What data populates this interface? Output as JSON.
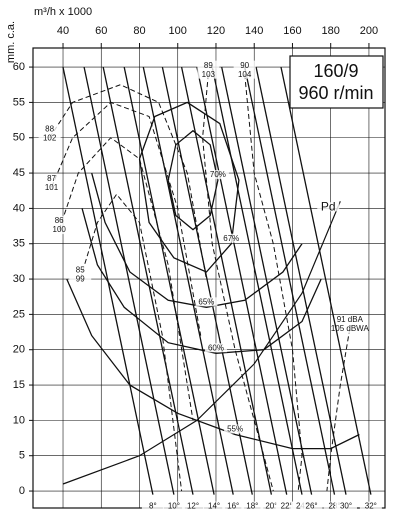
{
  "chart_data": {
    "type": "line",
    "title": [
      "160/9",
      "960 r/min"
    ],
    "x_label": "m³/h x 1000",
    "y_label": "mm. c.a.",
    "xlim": [
      24.3,
      208.4
    ],
    "ylim": [
      -2.4,
      62.7
    ],
    "xticks": [
      40,
      60,
      80,
      100,
      120,
      140,
      160,
      180,
      200
    ],
    "yticks": [
      0,
      5,
      10,
      15,
      20,
      25,
      30,
      35,
      40,
      45,
      50,
      55,
      60
    ],
    "grid": true,
    "color": "#111111",
    "series": [
      {
        "label": [
          "8°"
        ],
        "kind": "blade",
        "x": [
          40,
          87
        ],
        "values": [
          60,
          -0.5
        ]
      },
      {
        "label": [
          "10°"
        ],
        "kind": "blade",
        "x": [
          51,
          98
        ],
        "values": [
          60,
          -0.5
        ]
      },
      {
        "label": [
          "12°"
        ],
        "kind": "blade",
        "x": [
          61,
          108
        ],
        "values": [
          60,
          -0.5
        ]
      },
      {
        "label": [
          "14°"
        ],
        "kind": "blade",
        "x": [
          72,
          119
        ],
        "values": [
          60,
          -0.5
        ]
      },
      {
        "label": [
          "16°"
        ],
        "kind": "blade",
        "x": [
          82,
          129
        ],
        "values": [
          60,
          -0.5
        ]
      },
      {
        "label": [
          "18°"
        ],
        "kind": "blade",
        "x": [
          92,
          139
        ],
        "values": [
          60,
          -0.5
        ]
      },
      {
        "label": [
          "20°"
        ],
        "kind": "blade",
        "x": [
          102,
          149
        ],
        "values": [
          60,
          -0.5
        ]
      },
      {
        "label": [
          "22°"
        ],
        "kind": "blade",
        "x": [
          110,
          157
        ],
        "values": [
          60,
          -0.5
        ]
      },
      {
        "label": [
          "24°"
        ],
        "kind": "blade",
        "x": [
          118,
          165
        ],
        "values": [
          60,
          -0.5
        ]
      },
      {
        "label": [
          "26°"
        ],
        "kind": "blade",
        "x": [
          123,
          170
        ],
        "values": [
          60,
          -0.5
        ]
      },
      {
        "label": [
          "28°"
        ],
        "kind": "blade",
        "x": [
          135,
          182
        ],
        "values": [
          60,
          -0.5
        ]
      },
      {
        "label": [
          "30°"
        ],
        "kind": "blade",
        "x": [
          141,
          188
        ],
        "values": [
          60,
          -0.5
        ]
      },
      {
        "label": [
          "32°"
        ],
        "kind": "blade",
        "x": [
          154,
          201
        ],
        "values": [
          60,
          -0.5
        ]
      },
      {
        "label": [
          "70%"
        ],
        "kind": "efficiency",
        "x": [
          95,
          99,
          108,
          117,
          121,
          117,
          108,
          99,
          95
        ],
        "values": [
          44,
          49,
          51,
          49,
          44,
          39,
          37,
          39,
          44
        ]
      },
      {
        "label": [
          "67%"
        ],
        "kind": "efficiency",
        "x": [
          80,
          88,
          105,
          122,
          132,
          128,
          115,
          98,
          85,
          80
        ],
        "values": [
          47,
          53,
          55,
          52,
          44,
          35,
          31,
          33,
          38,
          47
        ]
      },
      {
        "label": [
          "65%"
        ],
        "kind": "efficiency",
        "x": [
          55,
          62,
          75,
          95,
          115,
          135,
          155,
          165
        ],
        "values": [
          45,
          38,
          31,
          27,
          26,
          27,
          31,
          35
        ]
      },
      {
        "label": [
          "60%"
        ],
        "kind": "efficiency",
        "x": [
          50,
          58,
          72,
          95,
          120,
          145,
          165,
          175
        ],
        "values": [
          40,
          32,
          26,
          21,
          19.5,
          20,
          24,
          30
        ]
      },
      {
        "label": [
          "55%"
        ],
        "kind": "efficiency",
        "x": [
          42,
          55,
          75,
          100,
          130,
          160,
          180,
          195
        ],
        "values": [
          30,
          22,
          15,
          11,
          8,
          6,
          6,
          8
        ]
      },
      {
        "label": [
          "Pd"
        ],
        "kind": "pd",
        "x": [
          40,
          80,
          110,
          140,
          165,
          185
        ],
        "values": [
          1,
          5,
          10,
          18,
          28,
          41
        ]
      },
      {
        "label": [
          "88",
          "102"
        ],
        "kind": "noise",
        "x": [
          33,
          45,
          70,
          90,
          105,
          115
        ],
        "values": [
          50,
          55,
          57.5,
          55,
          45,
          30
        ]
      },
      {
        "label": [
          "87",
          "101"
        ],
        "kind": "noise",
        "x": [
          34,
          45,
          65,
          85,
          100,
          112
        ],
        "values": [
          43,
          50,
          55,
          53,
          40,
          22
        ]
      },
      {
        "label": [
          "86",
          "100"
        ],
        "kind": "noise",
        "x": [
          38,
          48,
          65,
          80,
          95,
          108
        ],
        "values": [
          37,
          45,
          50,
          47,
          32,
          10
        ]
      },
      {
        "label": [
          "85",
          "99"
        ],
        "kind": "noise",
        "x": [
          49,
          58,
          68,
          80,
          92,
          102
        ],
        "values": [
          30,
          38,
          42,
          38,
          22,
          0
        ]
      },
      {
        "label": [
          "89",
          "103"
        ],
        "kind": "noise",
        "x": [
          116,
          113,
          118,
          130,
          145,
          150
        ],
        "values": [
          59,
          50,
          35,
          20,
          5,
          0
        ]
      },
      {
        "label": [
          "90",
          "104"
        ],
        "kind": "noise",
        "x": [
          135,
          140,
          150,
          160,
          165,
          163
        ],
        "values": [
          59,
          45,
          35,
          20,
          5,
          0
        ]
      },
      {
        "label": [
          "91 dBA",
          "105 dBWA"
        ],
        "kind": "noise",
        "x": [
          190,
          185,
          180,
          178
        ],
        "values": [
          23,
          15,
          5,
          0
        ]
      }
    ]
  }
}
